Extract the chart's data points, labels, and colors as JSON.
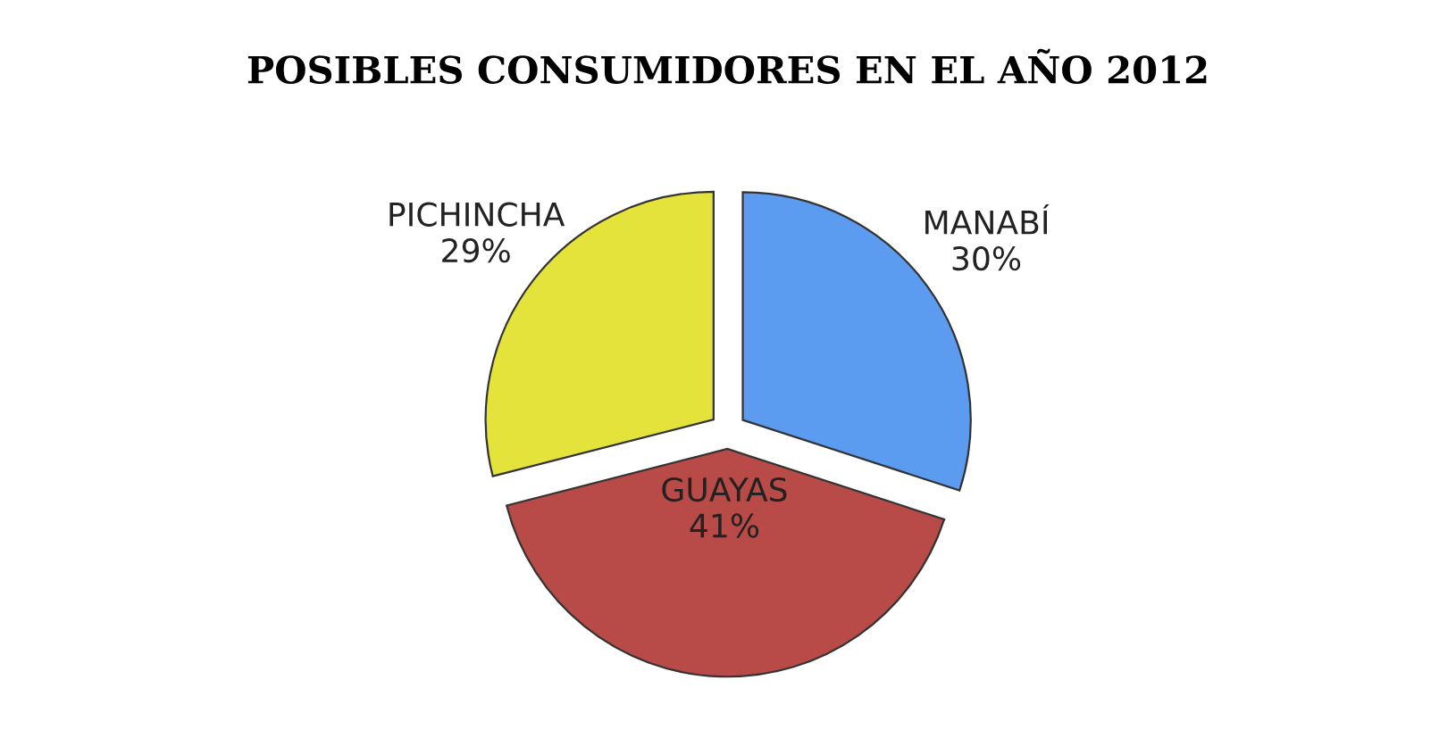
{
  "chart_data": {
    "type": "pie",
    "title": "POSIBLES CONSUMIDORES EN EL AÑO 2012",
    "categories": [
      "MANABÍ",
      "GUAYAS",
      "PICHINCHA"
    ],
    "values": [
      30,
      41,
      29
    ],
    "value_labels": [
      "30%",
      "41%",
      "29%"
    ],
    "colors": [
      "#5b9bf0",
      "#b84a48",
      "#e3e33c"
    ],
    "legend": false
  }
}
